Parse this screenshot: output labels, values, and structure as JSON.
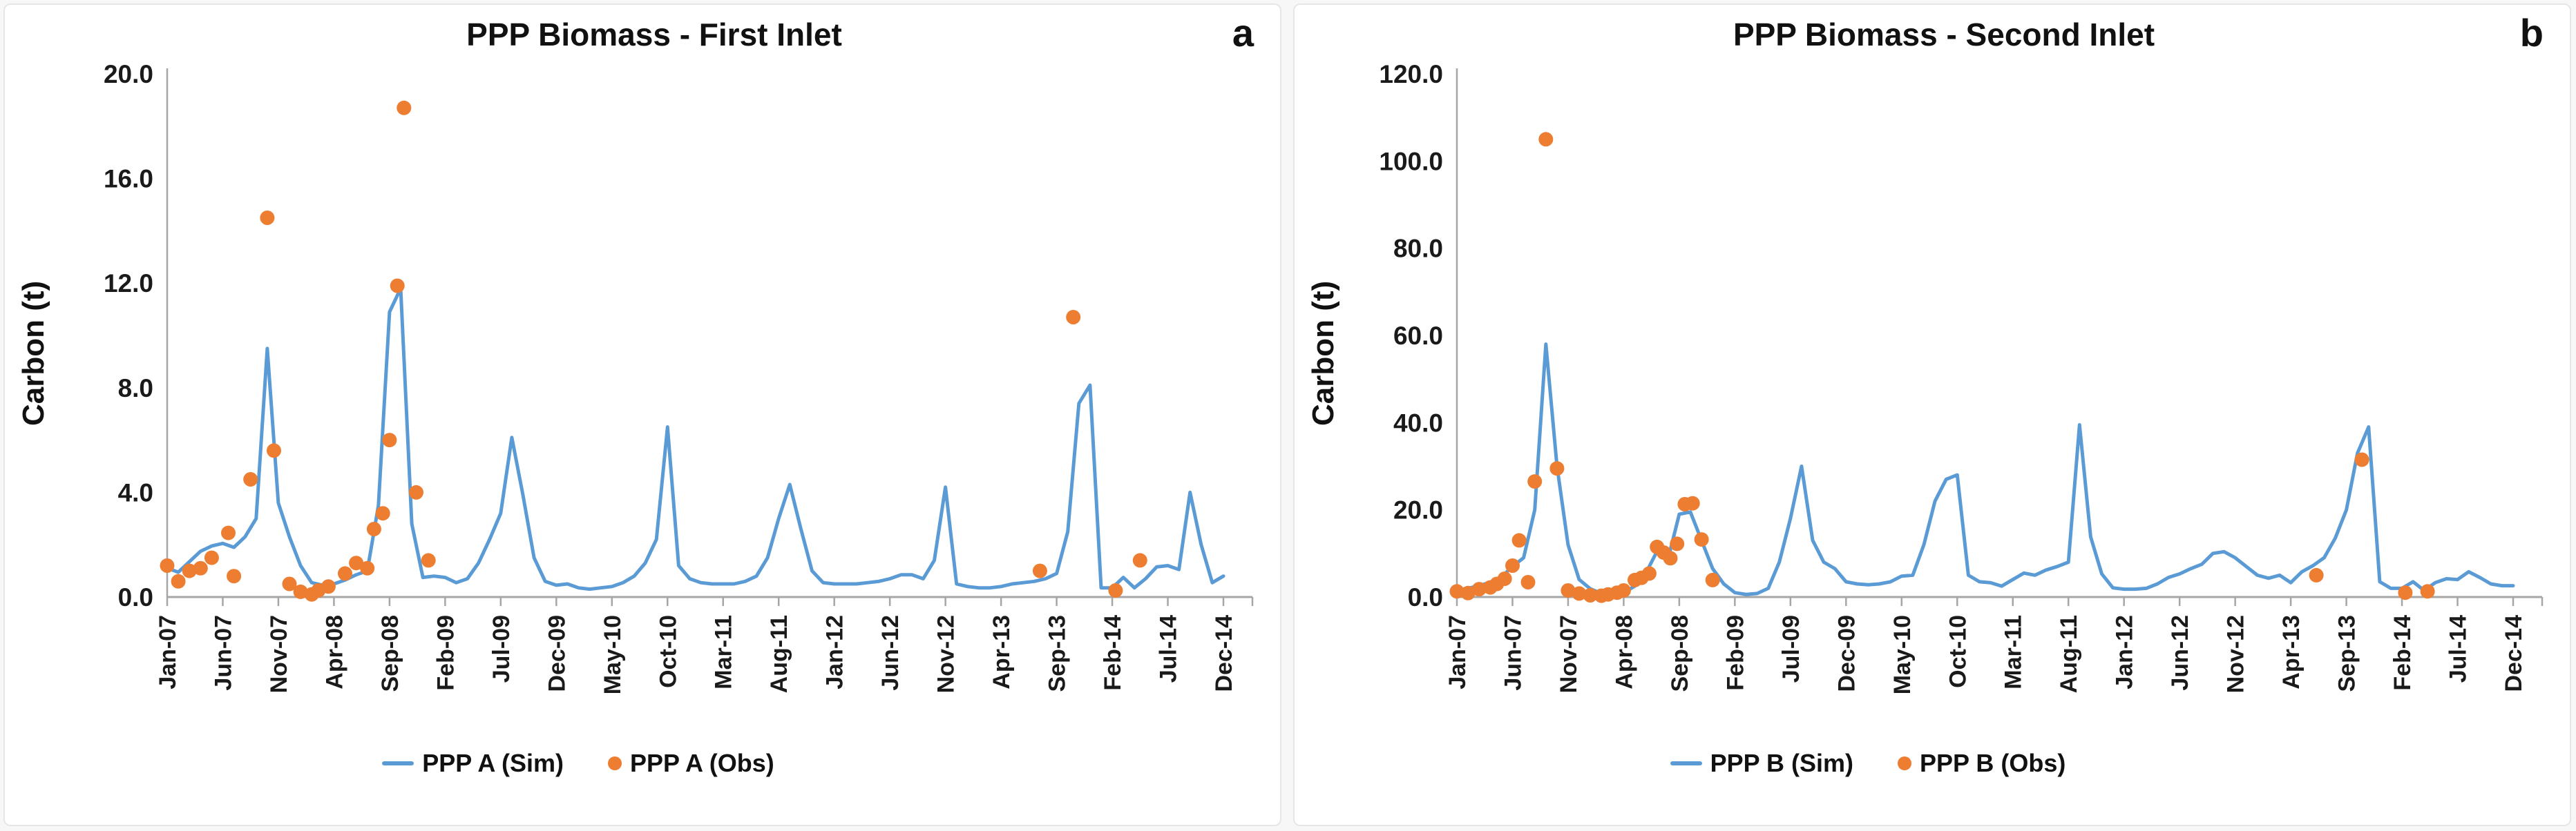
{
  "chart_data": [
    {
      "type": "line+scatter",
      "title": "PPP Biomass - First Inlet",
      "panel_label": "a",
      "ylabel": "Carbon (t)",
      "xlabel": "",
      "ylim": [
        0,
        20
      ],
      "y_ticks": [
        "0.0",
        "4.0",
        "8.0",
        "12.0",
        "16.0",
        "20.0"
      ],
      "x_tick_labels": [
        "Jan-07",
        "Jun-07",
        "Nov-07",
        "Apr-08",
        "Sep-08",
        "Feb-09",
        "Jul-09",
        "Dec-09",
        "May-10",
        "Oct-10",
        "Mar-11",
        "Aug-11",
        "Jan-12",
        "Jun-12",
        "Nov-12",
        "Apr-13",
        "Sep-13",
        "Feb-14",
        "Jul-14",
        "Dec-14"
      ],
      "x_tick_step_months": 5,
      "months_total": 96,
      "grid": false,
      "legend_position": "bottom",
      "axis_color": "#a6a6a6",
      "series": [
        {
          "name": "PPP A (Sim)",
          "type": "line",
          "color": "#5B9BD5",
          "monthly_values": [
            1.1,
            0.95,
            1.35,
            1.75,
            1.95,
            2.05,
            1.9,
            2.3,
            3.0,
            9.5,
            3.6,
            2.3,
            1.2,
            0.55,
            0.45,
            0.5,
            0.65,
            0.85,
            1.0,
            3.5,
            10.9,
            11.8,
            2.8,
            0.75,
            0.8,
            0.75,
            0.55,
            0.7,
            1.3,
            2.2,
            3.2,
            6.1,
            3.9,
            1.5,
            0.6,
            0.45,
            0.5,
            0.35,
            0.3,
            0.35,
            0.4,
            0.55,
            0.8,
            1.3,
            2.2,
            6.5,
            1.2,
            0.7,
            0.55,
            0.5,
            0.5,
            0.5,
            0.6,
            0.8,
            1.5,
            3.0,
            4.3,
            2.6,
            1.0,
            0.55,
            0.5,
            0.5,
            0.5,
            0.55,
            0.6,
            0.7,
            0.85,
            0.85,
            0.7,
            1.4,
            4.2,
            0.5,
            0.4,
            0.35,
            0.35,
            0.4,
            0.5,
            0.55,
            0.6,
            0.7,
            0.9,
            2.5,
            7.4,
            8.1,
            0.35,
            0.35,
            0.75,
            0.35,
            0.7,
            1.15,
            1.2,
            1.05,
            4.0,
            2.0,
            0.55,
            0.8
          ]
        },
        {
          "name": "PPP A (Obs)",
          "type": "scatter",
          "color": "#ED7D31",
          "points": [
            [
              0,
              1.2
            ],
            [
              1,
              0.6
            ],
            [
              2,
              1.0
            ],
            [
              3,
              1.1
            ],
            [
              4,
              1.5
            ],
            [
              5.5,
              2.45
            ],
            [
              6,
              0.8
            ],
            [
              7.5,
              4.5
            ],
            [
              9,
              14.5
            ],
            [
              9.6,
              5.6
            ],
            [
              11,
              0.5
            ],
            [
              12,
              0.2
            ],
            [
              13,
              0.1
            ],
            [
              13.6,
              0.25
            ],
            [
              14.5,
              0.4
            ],
            [
              16,
              0.9
            ],
            [
              17,
              1.3
            ],
            [
              18,
              1.1
            ],
            [
              18.6,
              2.6
            ],
            [
              19.4,
              3.2
            ],
            [
              20,
              6.0
            ],
            [
              20.7,
              11.9
            ],
            [
              21.3,
              18.7
            ],
            [
              22.4,
              4.0
            ],
            [
              23.5,
              1.4
            ],
            [
              78.5,
              1.0
            ],
            [
              81.5,
              10.7
            ],
            [
              85.3,
              0.25
            ],
            [
              87.5,
              1.4
            ]
          ]
        }
      ]
    },
    {
      "type": "line+scatter",
      "title": "PPP Biomass - Second Inlet",
      "panel_label": "b",
      "ylabel": "Carbon (t)",
      "xlabel": "",
      "ylim": [
        0,
        120
      ],
      "y_ticks": [
        "0.0",
        "20.0",
        "40.0",
        "60.0",
        "80.0",
        "100.0",
        "120.0"
      ],
      "x_tick_labels": [
        "Jan-07",
        "Jun-07",
        "Nov-07",
        "Apr-08",
        "Sep-08",
        "Feb-09",
        "Jul-09",
        "Dec-09",
        "May-10",
        "Oct-10",
        "Mar-11",
        "Aug-11",
        "Jan-12",
        "Jun-12",
        "Nov-12",
        "Apr-13",
        "Sep-13",
        "Feb-14",
        "Jul-14",
        "Dec-14"
      ],
      "x_tick_step_months": 5,
      "months_total": 96,
      "grid": false,
      "legend_position": "bottom",
      "axis_color": "#a6a6a6",
      "series": [
        {
          "name": "PPP B (Sim)",
          "type": "line",
          "color": "#5B9BD5",
          "monthly_values": [
            1.5,
            2.0,
            2.6,
            3.4,
            4.6,
            7.0,
            9.0,
            20.0,
            58.0,
            30.0,
            12.0,
            4.0,
            1.9,
            0.8,
            0.6,
            1.0,
            2.5,
            5.5,
            10.5,
            8.8,
            19.0,
            19.5,
            13.0,
            6.5,
            3.0,
            1.0,
            0.6,
            0.8,
            2.0,
            8.0,
            18.0,
            30.0,
            13.0,
            8.0,
            6.5,
            3.5,
            3.0,
            2.8,
            3.0,
            3.5,
            4.8,
            5.0,
            12.0,
            22.0,
            27.0,
            28.0,
            5.0,
            3.5,
            3.3,
            2.5,
            4.0,
            5.5,
            5.0,
            6.2,
            7.0,
            8.0,
            39.5,
            13.8,
            5.3,
            2.1,
            1.8,
            1.8,
            2.0,
            3.0,
            4.5,
            5.3,
            6.5,
            7.5,
            10.0,
            10.4,
            9.0,
            7.0,
            5.0,
            4.3,
            5.0,
            3.3,
            5.8,
            7.2,
            9.0,
            13.5,
            20.0,
            33.0,
            39.0,
            3.5,
            2.0,
            2.0,
            3.5,
            1.5,
            3.3,
            4.2,
            4.0,
            5.8,
            4.5,
            3.0,
            2.6,
            2.6
          ]
        },
        {
          "name": "PPP B (Obs)",
          "type": "scatter",
          "color": "#ED7D31",
          "points": [
            [
              0,
              1.3
            ],
            [
              1,
              0.9
            ],
            [
              2,
              1.8
            ],
            [
              3,
              2.2
            ],
            [
              3.6,
              3.0
            ],
            [
              4.3,
              4.2
            ],
            [
              5,
              7.2
            ],
            [
              5.6,
              13.0
            ],
            [
              6.4,
              3.4
            ],
            [
              7,
              26.5
            ],
            [
              8,
              105.0
            ],
            [
              9,
              29.5
            ],
            [
              10,
              1.5
            ],
            [
              11,
              0.8
            ],
            [
              12,
              0.4
            ],
            [
              13,
              0.3
            ],
            [
              13.6,
              0.6
            ],
            [
              14.4,
              1.0
            ],
            [
              15,
              1.5
            ],
            [
              16,
              3.9
            ],
            [
              16.6,
              4.4
            ],
            [
              17.3,
              5.4
            ],
            [
              18,
              11.5
            ],
            [
              18.6,
              10.2
            ],
            [
              19.2,
              8.9
            ],
            [
              19.8,
              12.2
            ],
            [
              20.5,
              21.3
            ],
            [
              21.2,
              21.5
            ],
            [
              22,
              13.2
            ],
            [
              23,
              3.9
            ],
            [
              77.3,
              5.0
            ],
            [
              81.4,
              31.5
            ],
            [
              85.3,
              1.0
            ],
            [
              87.3,
              1.3
            ]
          ]
        }
      ]
    }
  ]
}
